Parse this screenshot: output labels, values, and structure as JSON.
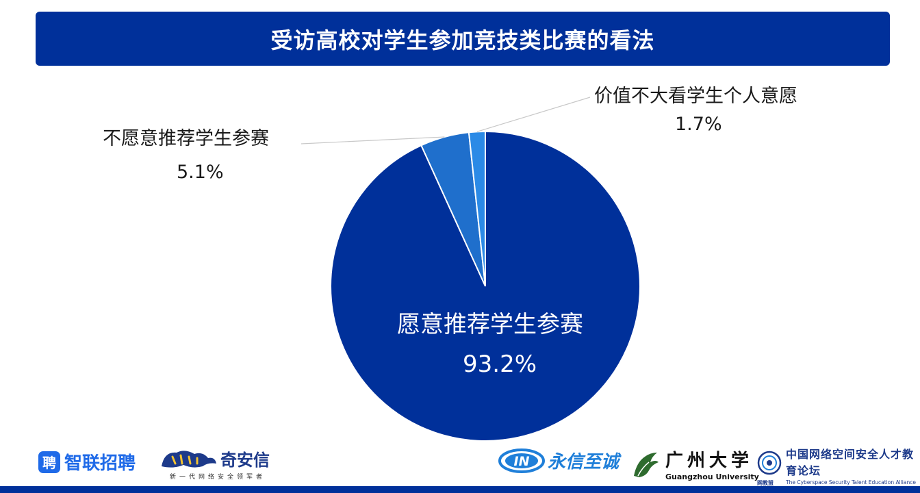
{
  "title": "受访高校对学生参加竞技类比赛的看法",
  "chart_data": {
    "type": "pie",
    "title": "受访高校对学生参加竞技类比赛的看法",
    "slices": [
      {
        "label": "愿意推荐学生参赛",
        "value": 93.2,
        "value_label": "93.2%",
        "color": "#00309a"
      },
      {
        "label": "不愿意推荐学生参赛",
        "value": 5.1,
        "value_label": "5.1%",
        "color": "#1f6fcc"
      },
      {
        "label": "价值不大看学生个人意愿",
        "value": 1.7,
        "value_label": "1.7%",
        "color": "#2b8ae6"
      }
    ],
    "start": "12-o'clock",
    "direction": "clockwise",
    "legend": "none"
  },
  "logos": {
    "zhilian": {
      "badge": "聘",
      "text": "智联招聘"
    },
    "qianxin": {
      "text": "奇安信",
      "sub": "新一代网络安全领军者"
    },
    "yongxin": {
      "mark": "IN",
      "text": "永信至诚"
    },
    "gzu": {
      "cn": "广州大学",
      "en": "Guangzhou University"
    },
    "alliance": {
      "cn": "中国网络空间安全人才教育论坛",
      "en": "The Cyberspace Security Talent Education Alliance of China",
      "tag": "网教盟"
    }
  }
}
